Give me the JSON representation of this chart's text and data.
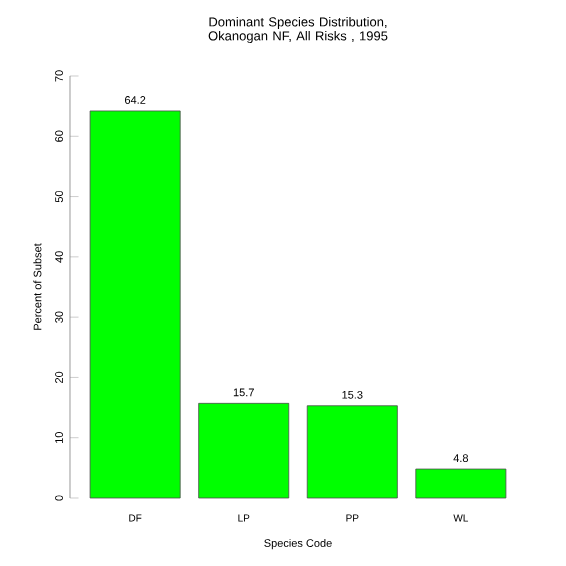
{
  "chart_data": {
    "type": "bar",
    "title": "Dominant Species Distribution, Okanogan NF, All Risks , 1995",
    "xlabel": "Species Code",
    "ylabel": "Percent of Subset",
    "categories": [
      "DF",
      "LP",
      "PP",
      "WL"
    ],
    "values": [
      64.2,
      15.7,
      15.3,
      4.8
    ],
    "color": "#00ff00",
    "ylim": [
      0,
      70
    ],
    "yticks": [
      0,
      10,
      20,
      30,
      40,
      50,
      60,
      70
    ],
    "data_labels": true,
    "grid": false
  }
}
